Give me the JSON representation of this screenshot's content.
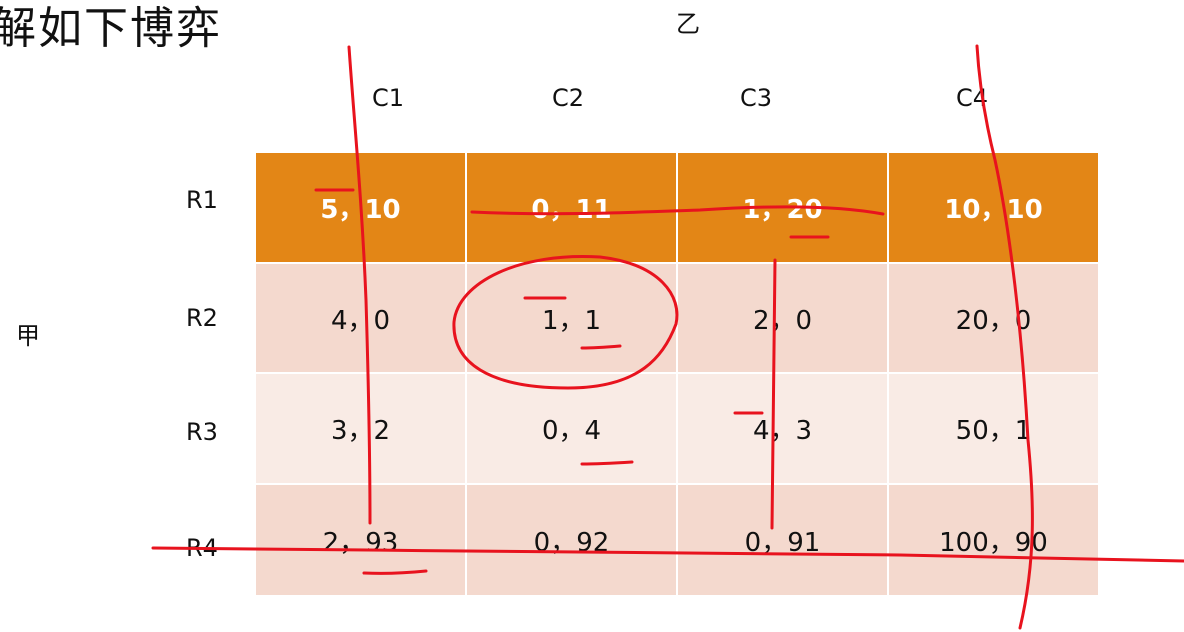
{
  "title": "解如下博弈",
  "player_col": "乙",
  "player_row": "甲",
  "columns": [
    "C1",
    "C2",
    "C3",
    "C4"
  ],
  "rows": [
    "R1",
    "R2",
    "R3",
    "R4"
  ],
  "cells": [
    [
      "5，10",
      "0，11",
      "1，20",
      "10，10"
    ],
    [
      "4，0",
      "1，1",
      "2，0",
      "20，0"
    ],
    [
      "3，2",
      "0，4",
      "4，3",
      "50，1"
    ],
    [
      "2，93",
      "0，92",
      "0，91",
      "100，90"
    ]
  ],
  "colors": {
    "header_row": "#e38616",
    "row_even": "#f4d9ce",
    "row_odd": "#f9ebe5",
    "annotation": "#e8131e"
  }
}
